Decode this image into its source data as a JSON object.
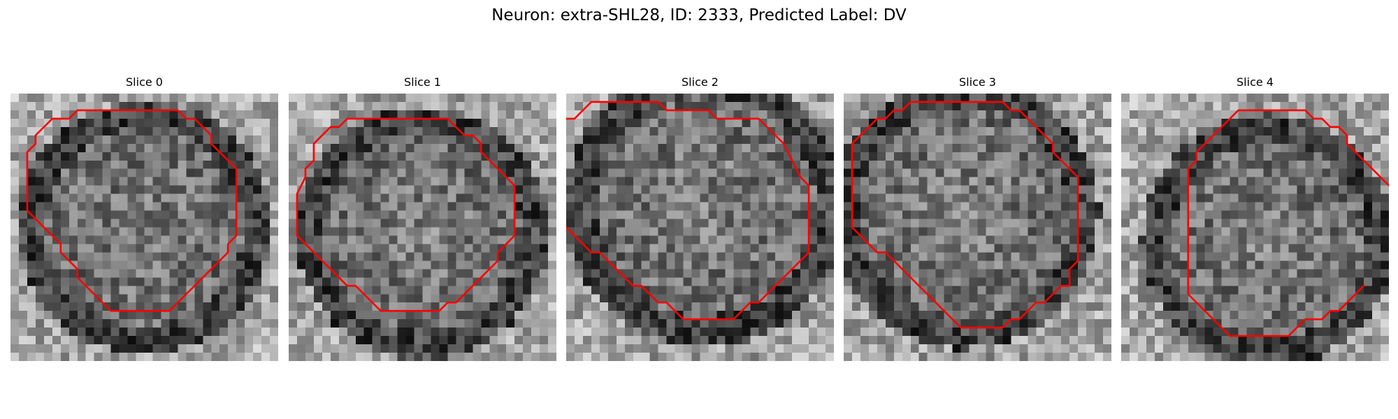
{
  "figure": {
    "title": "Neuron: extra-SHL28, ID: 2333, Predicted Label: DV",
    "slices": [
      {
        "label": "Slice 0",
        "seed": 11,
        "blob": [
          0.5,
          0.5,
          0.45
        ]
      },
      {
        "label": "Slice 1",
        "seed": 23,
        "blob": [
          0.5,
          0.52,
          0.45
        ]
      },
      {
        "label": "Slice 2",
        "seed": 37,
        "blob": [
          0.52,
          0.42,
          0.5
        ]
      },
      {
        "label": "Slice 3",
        "seed": 51,
        "blob": [
          0.45,
          0.45,
          0.48
        ]
      },
      {
        "label": "Slice 4",
        "seed": 73,
        "blob": [
          0.55,
          0.55,
          0.45
        ]
      }
    ],
    "contour_color": "#ff0000",
    "colormap": "gray"
  }
}
